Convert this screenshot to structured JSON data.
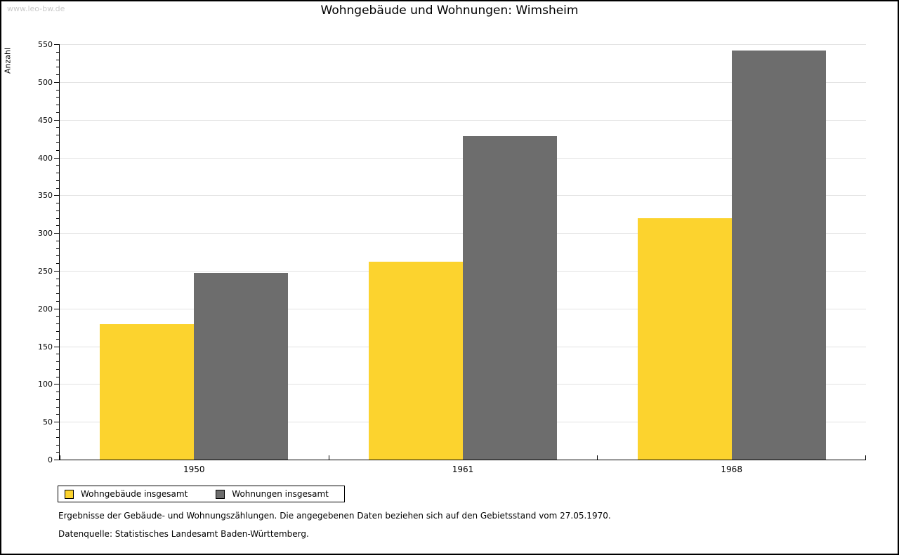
{
  "watermark": "www.leo-bw.de",
  "header": {
    "title": "Wohngebäude und Wohnungen: Wimsheim"
  },
  "chart_data": {
    "type": "bar",
    "title": "Wohngebäude und Wohnungen: Wimsheim",
    "ylabel": "Anzahl",
    "xlabel": "",
    "categories": [
      "1950",
      "1961",
      "1968"
    ],
    "series": [
      {
        "name": "Wohngebäude insgesamt",
        "color": "#FCD32E",
        "values": [
          179,
          262,
          320
        ]
      },
      {
        "name": "Wohnungen insgesamt",
        "color": "#6D6D6D",
        "values": [
          247,
          428,
          542
        ]
      }
    ],
    "ylim": [
      0,
      550
    ],
    "ytick_step": 50,
    "yminor_step": 10,
    "grid": true,
    "legend_position": "bottom-left"
  },
  "footer": {
    "note": "Ergebnisse der Gebäude- und Wohnungszählungen. Die angegebenen Daten beziehen sich auf den Gebietsstand vom 27.05.1970.",
    "source": "Datenquelle: Statistisches Landesamt Baden-Württemberg."
  },
  "colors": {
    "grid": "#E2E2E2",
    "axis": "#000000",
    "watermark": "#C9C9C9"
  }
}
